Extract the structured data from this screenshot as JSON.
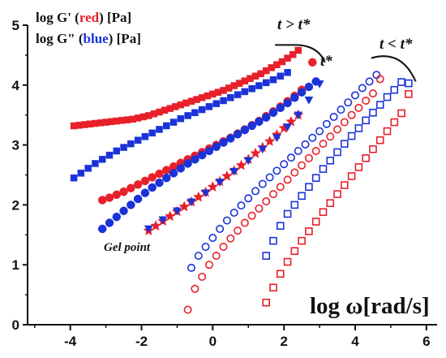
{
  "chart_data": {
    "type": "scatter",
    "title": "",
    "xlabel": "log ω[rad/s]",
    "ylabel": "",
    "xlim": [
      -5.2,
      6.3
    ],
    "ylim": [
      0,
      5
    ],
    "x_ticks": [
      "-4",
      "-2",
      "0",
      "2",
      "4",
      "6"
    ],
    "x_tick_values": [
      -4,
      -2,
      0,
      2,
      4,
      6
    ],
    "y_ticks": [
      "0",
      "1",
      "2",
      "3",
      "4",
      "5"
    ],
    "y_tick_values": [
      0,
      1,
      2,
      3,
      4,
      5
    ],
    "grid": false,
    "legend": {
      "placement": "top-left",
      "line1": {
        "a": "log G' (",
        "b": "red",
        "c": ") [Pa]"
      },
      "line2": {
        "a": "log G\" (",
        "b": "blue",
        "c": ") [Pa]"
      }
    },
    "colors": {
      "red": "#e8202a",
      "blue": "#1a33d9",
      "text": "#111111"
    },
    "annotations": {
      "t_gt": "t > t*",
      "t_star": "t*",
      "t_lt": "t < t*",
      "gel_point": "Gel point"
    },
    "series": [
      {
        "color": "red",
        "marker": "square",
        "fill": true,
        "x": [
          -3.9,
          -3.75,
          -3.6,
          -3.45,
          -3.3,
          -3.15,
          -3.0,
          -2.85,
          -2.7,
          -2.55,
          -2.4,
          -2.25,
          -2.1,
          -1.95,
          -1.8,
          -1.65,
          -1.5,
          -1.35,
          -1.2,
          -1.05,
          -0.9,
          -0.75,
          -0.6,
          -0.45,
          -0.3,
          -0.15,
          0.0,
          0.15,
          0.3,
          0.45,
          0.6,
          0.75,
          0.9,
          1.05,
          1.2,
          1.35,
          1.5,
          1.65,
          1.8,
          1.95,
          2.1,
          2.25,
          2.4
        ],
        "y": [
          3.32,
          3.33,
          3.34,
          3.35,
          3.36,
          3.37,
          3.38,
          3.39,
          3.4,
          3.41,
          3.42,
          3.43,
          3.45,
          3.47,
          3.49,
          3.52,
          3.55,
          3.58,
          3.61,
          3.64,
          3.67,
          3.7,
          3.73,
          3.76,
          3.79,
          3.82,
          3.85,
          3.88,
          3.91,
          3.95,
          3.99,
          4.03,
          4.07,
          4.11,
          4.15,
          4.19,
          4.24,
          4.29,
          4.34,
          4.39,
          4.45,
          4.51,
          4.58
        ]
      },
      {
        "color": "blue",
        "marker": "square",
        "fill": true,
        "x": [
          -3.9,
          -3.7,
          -3.5,
          -3.3,
          -3.1,
          -2.9,
          -2.7,
          -2.5,
          -2.3,
          -2.1,
          -1.9,
          -1.7,
          -1.5,
          -1.3,
          -1.1,
          -0.9,
          -0.7,
          -0.5,
          -0.3,
          -0.1,
          0.1,
          0.3,
          0.5,
          0.7,
          0.9,
          1.1,
          1.3,
          1.5,
          1.7,
          1.9,
          2.1
        ],
        "y": [
          2.45,
          2.53,
          2.61,
          2.69,
          2.76,
          2.83,
          2.9,
          2.96,
          3.02,
          3.08,
          3.14,
          3.2,
          3.26,
          3.32,
          3.38,
          3.44,
          3.49,
          3.54,
          3.59,
          3.64,
          3.69,
          3.74,
          3.79,
          3.84,
          3.89,
          3.94,
          3.99,
          4.04,
          4.09,
          4.15,
          4.21
        ]
      },
      {
        "color": "red",
        "marker": "circle",
        "fill": true,
        "x": [
          -3.1,
          -2.9,
          -2.7,
          -2.5,
          -2.3,
          -2.1,
          -1.9,
          -1.7,
          -1.5,
          -1.3,
          -1.1,
          -0.9,
          -0.7,
          -0.5,
          -0.3,
          -0.1,
          0.1,
          0.3,
          0.5,
          0.7,
          0.9,
          1.1,
          1.3,
          1.5,
          1.7,
          1.9,
          2.1,
          2.3,
          2.5,
          2.8
        ],
        "y": [
          2.08,
          2.12,
          2.17,
          2.22,
          2.28,
          2.34,
          2.4,
          2.46,
          2.52,
          2.58,
          2.64,
          2.7,
          2.76,
          2.82,
          2.88,
          2.94,
          3.0,
          3.06,
          3.12,
          3.19,
          3.26,
          3.33,
          3.4,
          3.48,
          3.56,
          3.64,
          3.73,
          3.82,
          3.92,
          4.38
        ]
      },
      {
        "color": "blue",
        "marker": "circle",
        "fill": true,
        "x": [
          -3.1,
          -2.9,
          -2.7,
          -2.5,
          -2.3,
          -2.1,
          -1.9,
          -1.7,
          -1.5,
          -1.3,
          -1.1,
          -0.9,
          -0.7,
          -0.5,
          -0.3,
          -0.1,
          0.1,
          0.3,
          0.5,
          0.7,
          0.9,
          1.1,
          1.3,
          1.5,
          1.7,
          1.9,
          2.1,
          2.3,
          2.5,
          2.7,
          2.9
        ],
        "y": [
          1.6,
          1.7,
          1.8,
          1.9,
          2.0,
          2.1,
          2.2,
          2.29,
          2.37,
          2.45,
          2.53,
          2.61,
          2.69,
          2.76,
          2.83,
          2.9,
          2.97,
          3.04,
          3.11,
          3.18,
          3.25,
          3.32,
          3.39,
          3.46,
          3.54,
          3.62,
          3.7,
          3.79,
          3.88,
          3.97,
          4.06
        ]
      },
      {
        "color": "red",
        "marker": "star",
        "fill": true,
        "x": [
          -1.8,
          -1.6,
          -1.4,
          -1.2,
          -1.0,
          -0.8,
          -0.6,
          -0.4,
          -0.2,
          0.0,
          0.2,
          0.4,
          0.6,
          0.8,
          1.0,
          1.2,
          1.4,
          1.6,
          1.8,
          2.0,
          2.2,
          2.4
        ],
        "y": [
          1.57,
          1.65,
          1.73,
          1.81,
          1.89,
          1.97,
          2.05,
          2.13,
          2.21,
          2.3,
          2.39,
          2.48,
          2.57,
          2.66,
          2.76,
          2.86,
          2.96,
          3.06,
          3.17,
          3.28,
          3.39,
          3.5
        ]
      },
      {
        "color": "blue",
        "marker": "triangle-down",
        "fill": true,
        "x": [
          -1.8,
          -1.4,
          -1.0,
          -0.6,
          -0.2,
          0.2,
          0.6,
          1.0,
          1.4,
          1.8,
          2.1,
          2.4,
          2.7,
          3.0
        ],
        "y": [
          1.6,
          1.75,
          1.9,
          2.05,
          2.2,
          2.38,
          2.56,
          2.74,
          2.93,
          3.12,
          3.3,
          3.5,
          3.75,
          4.02
        ]
      },
      {
        "color": "blue",
        "marker": "circle",
        "fill": false,
        "x": [
          -0.6,
          -0.4,
          -0.2,
          0.0,
          0.2,
          0.4,
          0.6,
          0.8,
          1.0,
          1.2,
          1.4,
          1.6,
          1.8,
          2.0,
          2.2,
          2.4,
          2.6,
          2.8,
          3.0,
          3.2,
          3.4,
          3.6,
          3.8,
          4.0,
          4.2,
          4.4,
          4.6
        ],
        "y": [
          0.95,
          1.15,
          1.3,
          1.45,
          1.6,
          1.74,
          1.87,
          1.99,
          2.11,
          2.23,
          2.35,
          2.46,
          2.57,
          2.68,
          2.79,
          2.9,
          3.01,
          3.12,
          3.23,
          3.35,
          3.47,
          3.59,
          3.71,
          3.83,
          3.95,
          4.06,
          4.17
        ]
      },
      {
        "color": "red",
        "marker": "circle",
        "fill": false,
        "x": [
          -0.7,
          -0.5,
          -0.3,
          -0.1,
          0.1,
          0.3,
          0.5,
          0.7,
          0.9,
          1.1,
          1.3,
          1.5,
          1.7,
          1.9,
          2.1,
          2.3,
          2.5,
          2.7,
          2.9,
          3.1,
          3.3,
          3.5,
          3.7,
          3.9,
          4.1,
          4.3,
          4.5,
          4.7
        ],
        "y": [
          0.25,
          0.6,
          0.8,
          1.0,
          1.15,
          1.3,
          1.44,
          1.57,
          1.7,
          1.82,
          1.94,
          2.06,
          2.18,
          2.3,
          2.42,
          2.54,
          2.66,
          2.78,
          2.9,
          3.02,
          3.14,
          3.26,
          3.38,
          3.5,
          3.62,
          3.74,
          3.86,
          4.1
        ]
      },
      {
        "color": "blue",
        "marker": "square",
        "fill": false,
        "x": [
          1.5,
          1.7,
          1.9,
          2.1,
          2.3,
          2.5,
          2.7,
          2.9,
          3.1,
          3.3,
          3.5,
          3.7,
          3.9,
          4.1,
          4.3,
          4.5,
          4.7,
          4.9,
          5.1,
          5.3,
          5.5
        ],
        "y": [
          1.15,
          1.4,
          1.65,
          1.85,
          2.0,
          2.15,
          2.3,
          2.45,
          2.6,
          2.74,
          2.88,
          3.02,
          3.15,
          3.28,
          3.41,
          3.54,
          3.67,
          3.8,
          3.92,
          4.05,
          4.03
        ]
      },
      {
        "color": "red",
        "marker": "square",
        "fill": false,
        "x": [
          1.5,
          1.7,
          1.9,
          2.1,
          2.3,
          2.5,
          2.7,
          2.9,
          3.1,
          3.3,
          3.5,
          3.7,
          3.9,
          4.1,
          4.3,
          4.5,
          4.7,
          4.9,
          5.1,
          5.3,
          5.5
        ],
        "y": [
          0.37,
          0.62,
          0.85,
          1.05,
          1.23,
          1.4,
          1.56,
          1.72,
          1.88,
          2.03,
          2.18,
          2.33,
          2.48,
          2.63,
          2.78,
          2.93,
          3.08,
          3.23,
          3.38,
          3.53,
          3.85
        ]
      }
    ]
  }
}
